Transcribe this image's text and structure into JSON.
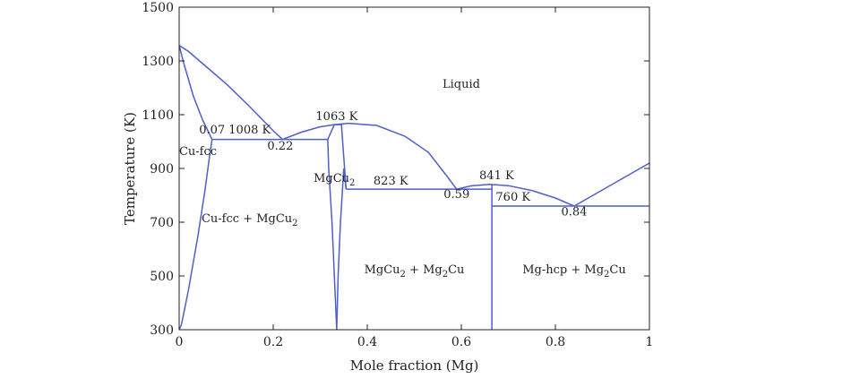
{
  "chart_data": {
    "type": "line",
    "title": "",
    "xlabel": "Mole fraction (Mg)",
    "ylabel": "Temperature (K)",
    "xlim": [
      0,
      1
    ],
    "ylim": [
      300,
      1500
    ],
    "x_ticks": [
      "0",
      "0.2",
      "0.4",
      "0.6",
      "0.8",
      "1"
    ],
    "x_tick_values": [
      0,
      0.2,
      0.4,
      0.6,
      0.8,
      1
    ],
    "y_ticks": [
      "300",
      "500",
      "700",
      "900",
      "1100",
      "1300",
      "1500"
    ],
    "y_tick_values": [
      300,
      500,
      700,
      900,
      1100,
      1300,
      1500
    ],
    "grid": false,
    "line_color": "#4f5fc8",
    "series": [
      {
        "points": [
          [
            0,
            1358
          ],
          [
            0.02,
            1335
          ],
          [
            0.05,
            1290
          ],
          [
            0.1,
            1215
          ],
          [
            0.15,
            1130
          ],
          [
            0.2,
            1040
          ],
          [
            0.22,
            1008
          ]
        ]
      },
      {
        "points": [
          [
            0,
            1358
          ],
          [
            0.01,
            1290
          ],
          [
            0.03,
            1170
          ],
          [
            0.05,
            1080
          ],
          [
            0.07,
            1008
          ]
        ]
      },
      {
        "points": [
          [
            0.07,
            1008
          ],
          [
            0.065,
            950
          ],
          [
            0.055,
            820
          ],
          [
            0.04,
            650
          ],
          [
            0.02,
            450
          ],
          [
            0.005,
            320
          ],
          [
            0,
            300
          ]
        ]
      },
      {
        "points": [
          [
            0.22,
            1008
          ],
          [
            0.26,
            1035
          ],
          [
            0.3,
            1055
          ],
          [
            0.33,
            1063
          ],
          [
            0.36,
            1068
          ],
          [
            0.42,
            1060
          ],
          [
            0.48,
            1020
          ],
          [
            0.53,
            960
          ],
          [
            0.57,
            870
          ],
          [
            0.59,
            823
          ]
        ]
      },
      {
        "points": [
          [
            0.59,
            823
          ],
          [
            0.62,
            835
          ],
          [
            0.66,
            841
          ],
          [
            0.7,
            836
          ],
          [
            0.75,
            818
          ],
          [
            0.8,
            790
          ],
          [
            0.84,
            760
          ]
        ]
      },
      {
        "points": [
          [
            0.84,
            760
          ],
          [
            0.88,
            800
          ],
          [
            0.92,
            840
          ],
          [
            0.96,
            880
          ],
          [
            1,
            920
          ]
        ]
      },
      {
        "points": [
          [
            0.07,
            1008
          ],
          [
            0.316,
            1008
          ]
        ]
      },
      {
        "points": [
          [
            0.355,
            823
          ],
          [
            0.665,
            823
          ]
        ]
      },
      {
        "points": [
          [
            0.665,
            760
          ],
          [
            1,
            760
          ]
        ]
      },
      {
        "points": [
          [
            0.316,
            1008
          ],
          [
            0.318,
            900
          ],
          [
            0.325,
            700
          ],
          [
            0.33,
            500
          ],
          [
            0.335,
            300
          ]
        ]
      },
      {
        "points": [
          [
            0.335,
            300
          ],
          [
            0.338,
            500
          ],
          [
            0.343,
            700
          ],
          [
            0.35,
            900
          ],
          [
            0.355,
            823
          ]
        ]
      },
      {
        "points": [
          [
            0.355,
            823
          ],
          [
            0.345,
            1063
          ]
        ]
      },
      {
        "points": [
          [
            0.316,
            1008
          ],
          [
            0.33,
            1063
          ],
          [
            0.345,
            1063
          ]
        ]
      },
      {
        "points": [
          [
            0.665,
            841
          ],
          [
            0.665,
            300
          ]
        ]
      }
    ],
    "annotations": [
      {
        "text": "Liquid",
        "x": 0.6,
        "y": 1200
      },
      {
        "text": "Cu-fcc",
        "x": 0.04,
        "y": 950
      },
      {
        "text": "0.07",
        "x": 0.07,
        "y": 1030
      },
      {
        "text": "1008 K",
        "x": 0.15,
        "y": 1030
      },
      {
        "text": "0.22",
        "x": 0.215,
        "y": 970
      },
      {
        "text": "1063 K",
        "x": 0.335,
        "y": 1080
      },
      {
        "text": "MgCu",
        "sub": "2",
        "x": 0.33,
        "y": 850
      },
      {
        "text": "823 K",
        "x": 0.45,
        "y": 840
      },
      {
        "text": "841 K",
        "x": 0.675,
        "y": 860
      },
      {
        "text": "0.59",
        "x": 0.59,
        "y": 790
      },
      {
        "text": "760 K",
        "x": 0.71,
        "y": 780
      },
      {
        "text": "0.84",
        "x": 0.84,
        "y": 725
      },
      {
        "text": "Cu-fcc + MgCu",
        "sub": "2",
        "x": 0.15,
        "y": 700
      },
      {
        "text": "MgCu",
        "sub": "2",
        "tail": " + Mg",
        "sub2": "2",
        "tail2": "Cu",
        "x": 0.5,
        "y": 510
      },
      {
        "text": "Mg-hcp + Mg",
        "sub": "2",
        "tail": "Cu",
        "x": 0.84,
        "y": 510
      }
    ]
  }
}
